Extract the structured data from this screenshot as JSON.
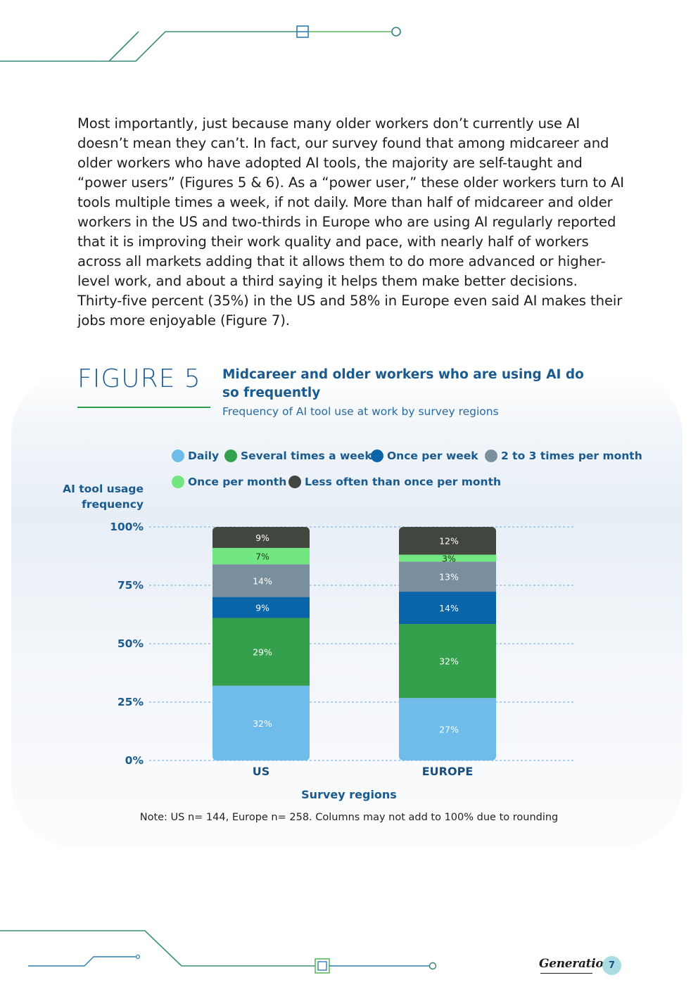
{
  "intro_text": "Most importantly, just because many older workers don’t currently use AI doesn’t mean they can’t. In fact, our survey found that among midcareer and older workers who have adopted AI tools, the majority are self-taught and “power users” (Figures 5 & 6). As a “power user,” these older workers turn to AI tools multiple times a week, if not daily. More than half of midcareer and older workers in the US and two-thirds in Europe who are using AI regularly reported that it is improving their work quality and pace, with nearly half of workers across all markets adding that it allows them to do more advanced or higher-level work, and about a third saying it helps them make better decisions. Thirty-five percent (35%) in the US and 58% in Europe even said AI makes their jobs more enjoyable (Figure 7).",
  "figure": {
    "label": "FIGURE 5",
    "title": "Midcareer and older workers who are using AI do so frequently",
    "subtitle": "Frequency of AI tool use at work by survey regions",
    "note": "Note: US n= 144, Europe n= 258. Columns may not add to 100% due to rounding"
  },
  "footer": {
    "brand": "Generation",
    "page_number": "7"
  },
  "colors": {
    "accent_blue": "#1a5a8c",
    "accent_green": "#2e9a4a"
  },
  "chart_data": {
    "type": "bar",
    "stacked": true,
    "categories": [
      "US",
      "EUROPE"
    ],
    "series": [
      {
        "name": "Daily",
        "color": "#6fbbe9",
        "values": [
          32,
          27
        ],
        "labels": [
          "32%",
          "27%"
        ]
      },
      {
        "name": "Several times a week",
        "color": "#34a04b",
        "values": [
          29,
          32
        ],
        "labels": [
          "29%",
          "32%"
        ]
      },
      {
        "name": "Once per week",
        "color": "#0a64a8",
        "values": [
          9,
          14
        ],
        "labels": [
          "9%",
          "14%"
        ]
      },
      {
        "name": "2 to 3 times per month",
        "color": "#7a8f9e",
        "values": [
          14,
          13
        ],
        "labels": [
          "14%",
          "13%"
        ]
      },
      {
        "name": "Once per month",
        "color": "#72e680",
        "values": [
          7,
          3
        ],
        "labels": [
          "7%",
          "3%"
        ]
      },
      {
        "name": "Less often than once per month",
        "color": "#41463f",
        "values": [
          9,
          12
        ],
        "labels": [
          "9%",
          "12%"
        ]
      }
    ],
    "ylabel": "AI tool usage frequency",
    "ylabel_lines": [
      "AI tool usage",
      "frequency"
    ],
    "xlabel": "Survey regions",
    "ylim": [
      0,
      100
    ],
    "yticks": [
      0,
      25,
      50,
      75,
      100
    ],
    "ytick_labels": [
      "0%",
      "25%",
      "50%",
      "75%",
      "100%"
    ],
    "grid": true,
    "legend_position": "top"
  }
}
